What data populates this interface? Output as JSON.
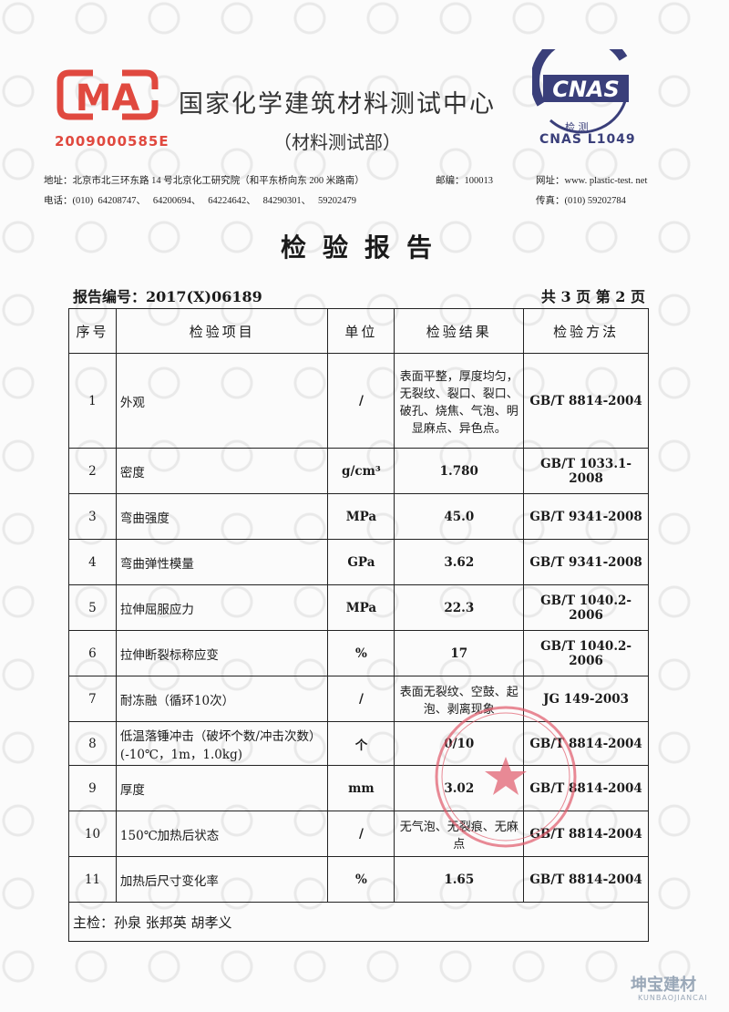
{
  "header": {
    "cma_logo": "CMA",
    "cma_number": "2009000585E",
    "org_name": "国家化学建筑材料测试中心",
    "dept": "（材料测试部）",
    "cnas_logo": "CNAS",
    "cnas_sub": "检 测",
    "cnas_number": "CNAS  L1049",
    "address": "地址：北京市北三环东路 14 号北京化工研究院（和平东桥向东 200 米路南）",
    "postcode": "邮编：100013",
    "website": "网址：www. plastic-test. net",
    "phone": "电话：(010)  64208747、   64200694、   64224642、   84290301、   59202479",
    "fax": "传真：(010)  59202784"
  },
  "title": "检验报告",
  "report_no": "报告编号：2017(X)06189",
  "page_info": "共 3 页 第 2 页",
  "table": {
    "headers": [
      "序号",
      "检验项目",
      "单位",
      "检验结果",
      "检验方法"
    ],
    "rows": [
      [
        "1",
        "外观",
        "/",
        "表面平整，厚度均匀，无裂纹、裂口、裂口、破孔、烧焦、气泡、明显麻点、异色点。",
        "GB/T 8814-2004"
      ],
      [
        "2",
        "密度",
        "g/cm³",
        "1.780",
        "GB/T 1033.1-2008"
      ],
      [
        "3",
        "弯曲强度",
        "MPa",
        "45.0",
        "GB/T 9341-2008"
      ],
      [
        "4",
        "弯曲弹性模量",
        "GPa",
        "3.62",
        "GB/T 9341-2008"
      ],
      [
        "5",
        "拉伸屈服应力",
        "MPa",
        "22.3",
        "GB/T 1040.2-2006"
      ],
      [
        "6",
        "拉伸断裂标称应变",
        "%",
        "17",
        "GB/T 1040.2-2006"
      ],
      [
        "7",
        "耐冻融（循环10次）",
        "/",
        "表面无裂纹、空鼓、起泡、剥离现象",
        "JG 149-2003"
      ],
      [
        "8",
        "低温落锤冲击（破坏个数/冲击次数）(-10℃，1m，1.0kg)",
        "个",
        "0/10",
        "GB/T 8814-2004"
      ],
      [
        "9",
        "厚度",
        "mm",
        "3.02",
        "GB/T 8814-2004"
      ],
      [
        "10",
        "150℃加热后状态",
        "/",
        "无气泡、无裂痕、无麻点",
        "GB/T 8814-2004"
      ],
      [
        "11",
        "加热后尺寸变化率",
        "%",
        "1.65",
        "GB/T 8814-2004"
      ]
    ],
    "footer": "主检：孙泉    张邦英    胡孝义"
  },
  "stamp": "国家化学建筑材料测试中心 材料测试部 测试专用章",
  "watermark": "坤宝建材",
  "watermark_sub": "KUNBAOJIANCAI",
  "colors": {
    "cma_red": "#e0493f",
    "cnas_blue": "#3a3f7a",
    "stamp_red": "#e05a6a"
  }
}
